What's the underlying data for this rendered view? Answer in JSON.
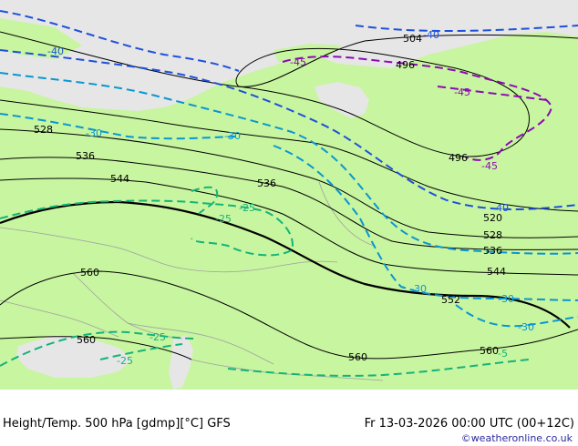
{
  "footer": {
    "left": "Height/Temp. 500 hPa [gdmp][°C] GFS",
    "right": "Fr 13-03-2026 00:00 UTC (00+12C)",
    "credit": "©weatheronline.co.uk"
  },
  "colors": {
    "land": "#c8f5a0",
    "sea": "#e6e6e6",
    "height_contour": "#000000",
    "temp_m40": "#1e50dc",
    "temp_m30": "#0a96d2",
    "temp_m25": "#14b478",
    "temp_m45": "#8c0ab4",
    "border": "#a0a0a0"
  },
  "height_labels": [
    "504",
    "496",
    "496",
    "528",
    "536",
    "544",
    "536",
    "520",
    "528",
    "536",
    "544",
    "552",
    "560",
    "560",
    "560",
    "560"
  ],
  "temp_labels": [
    "-40",
    "-40",
    "-45",
    "-45",
    "-45",
    "-30",
    "-30",
    "-25",
    "-25",
    "-40",
    "-30",
    "-30",
    "-30",
    "-25",
    "-25",
    "-5"
  ]
}
